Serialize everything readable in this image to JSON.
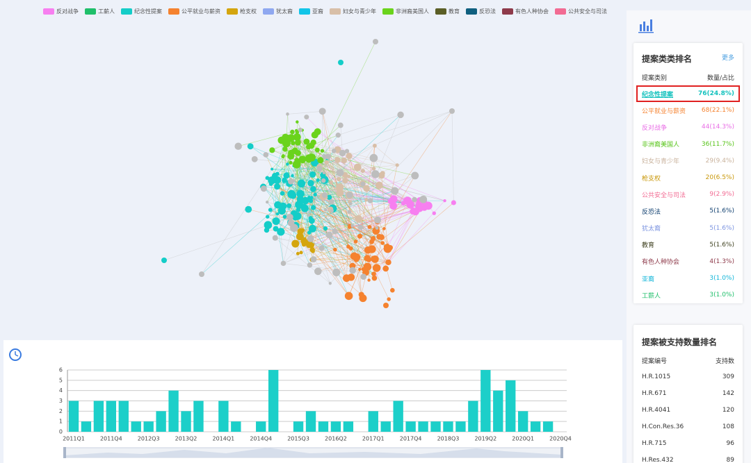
{
  "legend": [
    {
      "name": "反对战争",
      "color": "#f77ff0"
    },
    {
      "name": "工薪人",
      "color": "#1fbf6a"
    },
    {
      "name": "纪念性提案",
      "color": "#14cdc8"
    },
    {
      "name": "公平就业与薪资",
      "color": "#f5822f"
    },
    {
      "name": "枪支权",
      "color": "#d4a50e"
    },
    {
      "name": "犹太裔",
      "color": "#8fa8f0"
    },
    {
      "name": "亚裔",
      "color": "#12c5e8"
    },
    {
      "name": "妇女与青少年",
      "color": "#d8bfa8"
    },
    {
      "name": "非洲裔美国人",
      "color": "#6ad31c"
    },
    {
      "name": "教育",
      "color": "#5b5e26"
    },
    {
      "name": "反恐法",
      "color": "#0f5f7f"
    },
    {
      "name": "有色人种协会",
      "color": "#8e3a4a"
    },
    {
      "name": "公共安全与司法",
      "color": "#f26b93"
    }
  ],
  "ranking": {
    "title": "提案类类排名",
    "more": "更多",
    "header": [
      "提案类别",
      "数量/占比"
    ],
    "rows": [
      {
        "name": "纪念性提案",
        "value": "76(24.8%)",
        "color": "#14c2be"
      },
      {
        "name": "公平就业与薪资",
        "value": "68(22.1%)",
        "color": "#f5822f"
      },
      {
        "name": "反对战争",
        "value": "44(14.3%)",
        "color": "#e96ee6"
      },
      {
        "name": "非洲裔美国人",
        "value": "36(11.7%)",
        "color": "#58c41a"
      },
      {
        "name": "妇女与青少年",
        "value": "29(9.4%)",
        "color": "#c9b29c"
      },
      {
        "name": "枪支权",
        "value": "20(6.5%)",
        "color": "#c9980a"
      },
      {
        "name": "公共安全与司法",
        "value": "9(2.9%)",
        "color": "#f26b93"
      },
      {
        "name": "反恐法",
        "value": "5(1.6%)",
        "color": "#0f3f6f"
      },
      {
        "name": "犹太裔",
        "value": "5(1.6%)",
        "color": "#7c94e0"
      },
      {
        "name": "教育",
        "value": "5(1.6%)",
        "color": "#3f4120"
      },
      {
        "name": "有色人种协会",
        "value": "4(1.3%)",
        "color": "#8e3a4a"
      },
      {
        "name": "亚裔",
        "value": "3(1.0%)",
        "color": "#12b5d8"
      },
      {
        "name": "工薪人",
        "value": "3(1.0%)",
        "color": "#1fbf6a"
      }
    ]
  },
  "support": {
    "title": "提案被支持数量排名",
    "header": [
      "提案编号",
      "支持数"
    ],
    "rows": [
      {
        "name": "H.R.1015",
        "value": "309"
      },
      {
        "name": "H.R.671",
        "value": "142"
      },
      {
        "name": "H.R.4041",
        "value": "120"
      },
      {
        "name": "H.Con.Res.36",
        "value": "108"
      },
      {
        "name": "H.R.715",
        "value": "96"
      },
      {
        "name": "H.Res.432",
        "value": "89"
      }
    ]
  },
  "chart_data": {
    "type": "bar",
    "color": "#1ccfc9",
    "categories": [
      "2011Q1",
      null,
      null,
      "2011Q4",
      null,
      null,
      "2012Q3",
      null,
      null,
      "2013Q2",
      null,
      null,
      "2014Q1",
      null,
      null,
      "2014Q4",
      null,
      null,
      "2015Q3",
      null,
      null,
      "2016Q2",
      null,
      null,
      "2017Q1",
      null,
      null,
      "2017Q4",
      null,
      null,
      "2018Q3",
      null,
      null,
      "2019Q2",
      null,
      null,
      "2020Q1",
      null,
      null,
      "2020Q4"
    ],
    "values": [
      3,
      1,
      3,
      3,
      3,
      1,
      1,
      2,
      4,
      2,
      3,
      0,
      3,
      1,
      0,
      1,
      6,
      0,
      1,
      2,
      1,
      1,
      1,
      0,
      2,
      1,
      3,
      1,
      1,
      1,
      1,
      1,
      3,
      6,
      4,
      5,
      2,
      1,
      1,
      0
    ],
    "ylim": [
      0,
      6
    ],
    "yticks": [
      0,
      1,
      2,
      3,
      4,
      5,
      6
    ],
    "grid": true
  }
}
